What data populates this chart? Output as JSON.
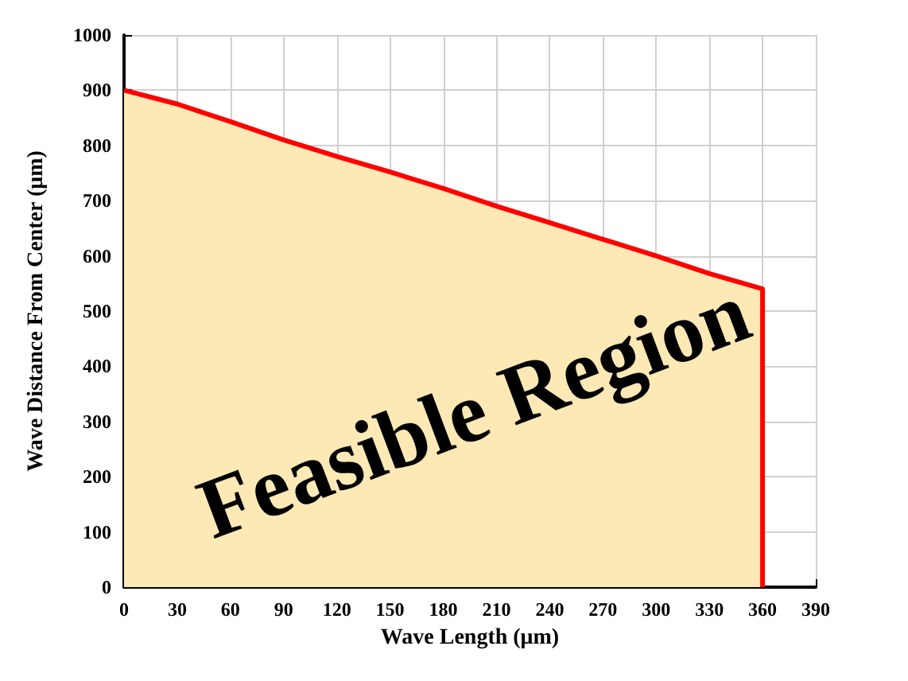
{
  "chart_data": {
    "type": "area",
    "xlabel": "Wave Length (μm)",
    "ylabel": "Wave Distance From Center (μm)",
    "annotations": [
      "Feasible Region"
    ],
    "x": [
      0,
      30,
      60,
      90,
      120,
      150,
      180,
      210,
      240,
      270,
      300,
      330,
      360,
      360
    ],
    "series": [
      {
        "color": "#ff0000",
        "values": [
          900,
          875,
          843,
          810,
          780,
          752,
          722,
          690,
          660,
          630,
          600,
          568,
          540,
          0
        ]
      }
    ],
    "xlim": [
      0,
      390
    ],
    "xticks": [
      0,
      30,
      60,
      90,
      120,
      150,
      180,
      210,
      240,
      270,
      300,
      330,
      360,
      390
    ],
    "ylim": [
      0,
      1000
    ],
    "yticks": [
      0,
      100,
      200,
      300,
      400,
      500,
      600,
      700,
      800,
      900,
      1000
    ],
    "grid": true
  }
}
